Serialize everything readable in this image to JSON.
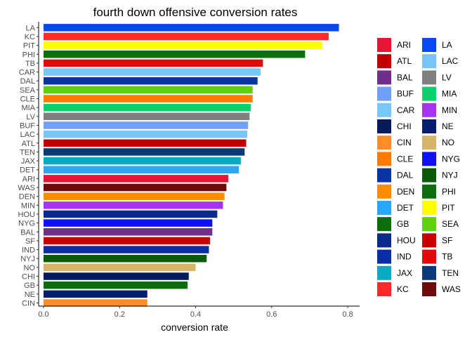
{
  "chart_data": {
    "type": "bar",
    "orientation": "horizontal",
    "title": "fourth down offensive conversion rates",
    "xlabel": "conversion rate",
    "ylabel": "",
    "xlim": [
      0,
      0.8
    ],
    "x_ticks": [
      0.0,
      0.2,
      0.4,
      0.6,
      0.8
    ],
    "x_tick_labels": [
      "0.0",
      "0.2",
      "0.4",
      "0.6",
      "0.8"
    ],
    "grid": false,
    "legend_position": "right",
    "bars": [
      {
        "team": "LA",
        "value": 0.777
      },
      {
        "team": "KC",
        "value": 0.75
      },
      {
        "team": "PIT",
        "value": 0.733
      },
      {
        "team": "PHI",
        "value": 0.688
      },
      {
        "team": "TB",
        "value": 0.577
      },
      {
        "team": "CAR",
        "value": 0.571
      },
      {
        "team": "DAL",
        "value": 0.563
      },
      {
        "team": "SEA",
        "value": 0.55
      },
      {
        "team": "CLE",
        "value": 0.55
      },
      {
        "team": "MIA",
        "value": 0.545
      },
      {
        "team": "LV",
        "value": 0.542
      },
      {
        "team": "BUF",
        "value": 0.538
      },
      {
        "team": "LAC",
        "value": 0.536
      },
      {
        "team": "ATL",
        "value": 0.533
      },
      {
        "team": "TEN",
        "value": 0.529
      },
      {
        "team": "JAX",
        "value": 0.519
      },
      {
        "team": "DET",
        "value": 0.514
      },
      {
        "team": "ARI",
        "value": 0.486
      },
      {
        "team": "WAS",
        "value": 0.481
      },
      {
        "team": "DEN",
        "value": 0.476
      },
      {
        "team": "MIN",
        "value": 0.472
      },
      {
        "team": "HOU",
        "value": 0.457
      },
      {
        "team": "NYG",
        "value": 0.444
      },
      {
        "team": "BAL",
        "value": 0.444
      },
      {
        "team": "SF",
        "value": 0.438
      },
      {
        "team": "IND",
        "value": 0.435
      },
      {
        "team": "NYJ",
        "value": 0.429
      },
      {
        "team": "NO",
        "value": 0.4
      },
      {
        "team": "CHI",
        "value": 0.382
      },
      {
        "team": "GB",
        "value": 0.379
      },
      {
        "team": "NE",
        "value": 0.273
      },
      {
        "team": "CIN",
        "value": 0.273
      }
    ],
    "legend": [
      {
        "team": "ARI",
        "color": "#E31837"
      },
      {
        "team": "ATL",
        "color": "#C00000"
      },
      {
        "team": "BAL",
        "color": "#702F8A"
      },
      {
        "team": "BUF",
        "color": "#6F9FF8"
      },
      {
        "team": "CAR",
        "color": "#77C8F8"
      },
      {
        "team": "CHI",
        "color": "#051C5C"
      },
      {
        "team": "CIN",
        "color": "#FF8C2A"
      },
      {
        "team": "CLE",
        "color": "#FF7B00"
      },
      {
        "team": "DAL",
        "color": "#0A35A0"
      },
      {
        "team": "DEN",
        "color": "#FF8C00"
      },
      {
        "team": "DET",
        "color": "#2AA7F8"
      },
      {
        "team": "GB",
        "color": "#0B6E0B"
      },
      {
        "team": "HOU",
        "color": "#0A2A8C"
      },
      {
        "team": "IND",
        "color": "#0B2FA3"
      },
      {
        "team": "JAX",
        "color": "#0AA9C2"
      },
      {
        "team": "KC",
        "color": "#FF2B2B"
      },
      {
        "team": "LA",
        "color": "#0A47F5"
      },
      {
        "team": "LAC",
        "color": "#77C4F8"
      },
      {
        "team": "LV",
        "color": "#808080"
      },
      {
        "team": "MIA",
        "color": "#0ACF6B"
      },
      {
        "team": "MIN",
        "color": "#A533F0"
      },
      {
        "team": "NE",
        "color": "#061E6E"
      },
      {
        "team": "NO",
        "color": "#D6B46A"
      },
      {
        "team": "NYG",
        "color": "#1010F5"
      },
      {
        "team": "NYJ",
        "color": "#0A5A0A"
      },
      {
        "team": "PHI",
        "color": "#0D6E0D"
      },
      {
        "team": "PIT",
        "color": "#FFFF00"
      },
      {
        "team": "SEA",
        "color": "#5ED10A"
      },
      {
        "team": "SF",
        "color": "#C80000"
      },
      {
        "team": "TB",
        "color": "#E10A0A"
      },
      {
        "team": "TEN",
        "color": "#0A3A7A"
      },
      {
        "team": "WAS",
        "color": "#6E0A0A"
      }
    ]
  }
}
